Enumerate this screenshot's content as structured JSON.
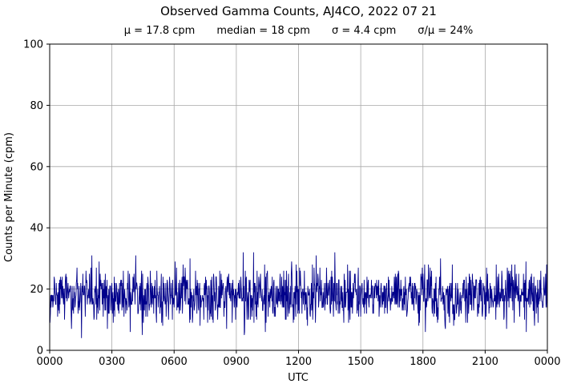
{
  "figure_title": "Observed Gamma Counts, AJ4CO, 2022 07 21",
  "stats": {
    "mu": "μ = 17.8 cpm",
    "median": "median = 18 cpm",
    "sigma": "σ = 4.4 cpm",
    "sigma_over_mu": "σ/μ = 24%"
  },
  "chart_data": {
    "type": "line",
    "title": "Observed Gamma Counts, AJ4CO, 2022 07 21",
    "station": "AJ4CO",
    "date": "2022 07 21",
    "stats": {
      "mean_cpm": 17.8,
      "median_cpm": 18,
      "sigma_cpm": 4.4,
      "sigma_over_mean_percent": 24
    },
    "xlabel": "UTC",
    "ylabel": "Counts per Minute (cpm)",
    "ylim": [
      0,
      100
    ],
    "yticks": [
      0,
      20,
      40,
      60,
      80,
      100
    ],
    "x_minutes_range": [
      0,
      1440
    ],
    "xticks_minutes": [
      0,
      180,
      360,
      540,
      720,
      900,
      1080,
      1260,
      1440
    ],
    "xtick_labels": [
      "0000",
      "0300",
      "0600",
      "0900",
      "1200",
      "1500",
      "1800",
      "2100",
      "0000"
    ],
    "grid": true,
    "legend": "none",
    "series": [
      {
        "name": "observed gamma counts",
        "color": "#00008B",
        "sample_interval_minutes": 1,
        "n_points": 1441,
        "mean": 17.8,
        "median": 18,
        "sigma": 4.4,
        "min_observed": 4,
        "max_observed": 33,
        "seed": 20220721
      }
    ]
  },
  "colors": {
    "background": "#ffffff",
    "grid": "#a8a8a8",
    "axes": "#000000",
    "text": "#000000",
    "line": "#00008B"
  }
}
